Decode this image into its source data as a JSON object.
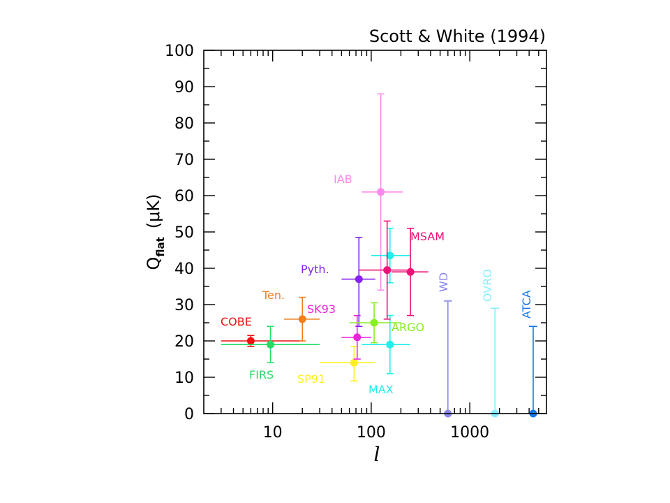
{
  "chart_data": {
    "type": "scatter",
    "title": "Scott & White (1994)",
    "xlabel": "l",
    "ylabel": {
      "main": "Q",
      "subscript": "flat",
      "unit": "(μK)"
    },
    "xscale": "log",
    "xlim": [
      2,
      6000
    ],
    "ylim": [
      0,
      100
    ],
    "x_ticks": [
      10,
      100,
      1000
    ],
    "x_tick_labels": [
      "10",
      "100",
      "1000"
    ],
    "y_ticks": [
      0,
      10,
      20,
      30,
      40,
      50,
      60,
      70,
      80,
      90,
      100
    ],
    "y_tick_labels": [
      "0",
      "10",
      "20",
      "30",
      "40",
      "50",
      "60",
      "70",
      "80",
      "90",
      "100"
    ],
    "grid": false,
    "series": [
      {
        "name": "COBE",
        "color": "#ee1111",
        "points": [
          {
            "x": 6,
            "y": 20,
            "xerr": [
              3,
              20
            ],
            "yerr": [
              18.5,
              21.5
            ]
          }
        ]
      },
      {
        "name": "FIRS",
        "color": "#22dd66",
        "points": [
          {
            "x": 9.5,
            "y": 19,
            "xerr": [
              3,
              30
            ],
            "yerr": [
              14,
              24
            ]
          }
        ]
      },
      {
        "name": "Ten.",
        "color": "#f08020",
        "points": [
          {
            "x": 20,
            "y": 26,
            "xerr": [
              13,
              30
            ],
            "yerr": [
              20,
              32
            ]
          }
        ]
      },
      {
        "name": "SP91",
        "color": "#ffee22",
        "points": [
          {
            "x": 67,
            "y": 14,
            "xerr": [
              30,
              110
            ],
            "yerr": [
              9,
              18.5
            ]
          }
        ]
      },
      {
        "name": "SK93",
        "color": "#ee22dd",
        "points": [
          {
            "x": 72,
            "y": 21,
            "xerr": [
              50,
              100
            ],
            "yerr": [
              15,
              27
            ]
          }
        ]
      },
      {
        "name": "Pyth.",
        "color": "#8822ee",
        "points": [
          {
            "x": 75,
            "y": 37,
            "xerr": [
              50,
              110
            ],
            "yerr": [
              24,
              48.5
            ]
          }
        ]
      },
      {
        "name": "ARGO",
        "color": "#88ee22",
        "points": [
          {
            "x": 107,
            "y": 25,
            "xerr": [
              60,
              200
            ],
            "yerr": [
              19.5,
              30.5
            ]
          }
        ]
      },
      {
        "name": "IAB",
        "color": "#ff88ee",
        "points": [
          {
            "x": 125,
            "y": 61,
            "xerr": [
              80,
              210
            ],
            "yerr": [
              34,
              88
            ]
          }
        ]
      },
      {
        "name": "MAX",
        "color": "#22eeee",
        "points": [
          {
            "x": 155,
            "y": 19,
            "xerr": [
              80,
              250
            ],
            "yerr": [
              11,
              27
            ]
          },
          {
            "x": 155,
            "y": 43.5,
            "xerr": [
              100,
              250
            ],
            "yerr": [
              36,
              51
            ]
          }
        ]
      },
      {
        "name": "MSAM",
        "color": "#ee1177",
        "points": [
          {
            "x": 145,
            "y": 39.5,
            "xerr": [
              75,
              230
            ],
            "yerr": [
              26,
              53
            ]
          },
          {
            "x": 250,
            "y": 39,
            "xerr": [
              160,
              380
            ],
            "yerr": [
              27,
              51
            ]
          }
        ]
      },
      {
        "name": "WD",
        "color": "#8888ee",
        "points": [
          {
            "x": 600,
            "y": 0,
            "upper_limit": 31
          }
        ]
      },
      {
        "name": "OVRO",
        "color": "#88eeff",
        "points": [
          {
            "x": 1800,
            "y": 0,
            "upper_limit": 29
          }
        ]
      },
      {
        "name": "ATCA",
        "color": "#1177ee",
        "points": [
          {
            "x": 4400,
            "y": 0,
            "upper_limit": 24
          }
        ]
      }
    ],
    "annotations": [
      {
        "text": "COBE",
        "color": "#ee1111"
      },
      {
        "text": "FIRS",
        "color": "#22dd66"
      },
      {
        "text": "Ten.",
        "color": "#f08020"
      },
      {
        "text": "SP91",
        "color": "#ffee22"
      },
      {
        "text": "SK93",
        "color": "#ee22dd"
      },
      {
        "text": "Pyth.",
        "color": "#8822ee"
      },
      {
        "text": "ARGO",
        "color": "#88ee22"
      },
      {
        "text": "IAB",
        "color": "#ff88ee"
      },
      {
        "text": "MAX",
        "color": "#22eeee"
      },
      {
        "text": "MSAM",
        "color": "#ee1177"
      },
      {
        "text": "WD",
        "color": "#8888ee"
      },
      {
        "text": "OVRO",
        "color": "#88eeff"
      },
      {
        "text": "ATCA",
        "color": "#1177ee"
      }
    ]
  }
}
